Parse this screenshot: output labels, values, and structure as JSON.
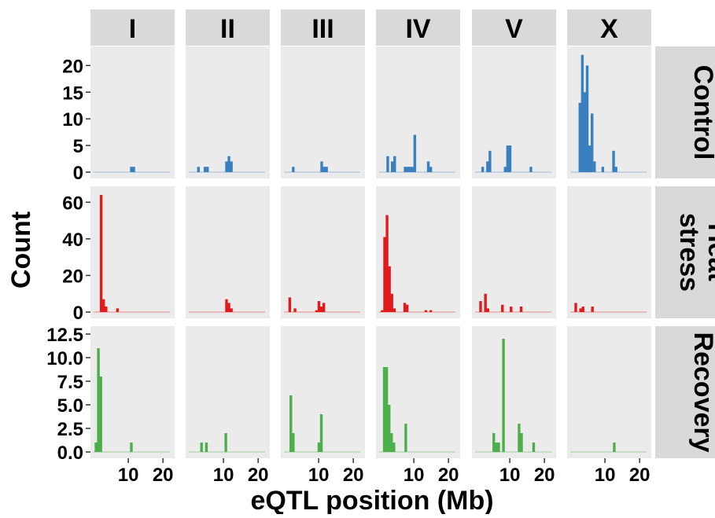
{
  "chart_data": {
    "type": "bar",
    "xlabel": "eQTL position (Mb)",
    "ylabel": "Count",
    "columns": [
      "I",
      "II",
      "III",
      "IV",
      "V",
      "X"
    ],
    "colors": {
      "Control": "#3a80bf",
      "Heat stress": "#e31a1c",
      "Recovery": "#4daf4a",
      "panel_bg": "#ebebeb",
      "strip_bg": "#d9d9d9"
    },
    "bin_width_mb": 0.7,
    "x_ticks": [
      "10",
      "20"
    ],
    "x_tick_values": [
      10,
      20
    ],
    "xlim": [
      0,
      22
    ],
    "rows": [
      {
        "label_lines": [
          "Control"
        ],
        "y_ticks": [
          "0",
          "5",
          "10",
          "15",
          "20"
        ],
        "y_tick_values": [
          0,
          5,
          10,
          15,
          20
        ],
        "ylim": [
          0,
          23
        ],
        "bars": [
          [
            [
              10.5,
              1
            ],
            [
              11.2,
              1
            ]
          ],
          [
            [
              2.4,
              1
            ],
            [
              4.3,
              1
            ],
            [
              5.0,
              1
            ],
            [
              10.5,
              2
            ],
            [
              11.2,
              3
            ],
            [
              11.9,
              2
            ]
          ],
          [
            [
              2.3,
              1
            ],
            [
              10.5,
              2
            ],
            [
              11.2,
              1
            ],
            [
              11.9,
              1
            ]
          ],
          [
            [
              2.1,
              3
            ],
            [
              3.4,
              2
            ],
            [
              4.1,
              3
            ],
            [
              7.1,
              1
            ],
            [
              7.8,
              1
            ],
            [
              8.5,
              1
            ],
            [
              9.2,
              1
            ],
            [
              9.9,
              7
            ],
            [
              13.8,
              2
            ],
            [
              14.5,
              1
            ]
          ],
          [
            [
              1.8,
              1
            ],
            [
              3.2,
              2
            ],
            [
              3.9,
              4
            ],
            [
              8.3,
              1
            ],
            [
              9.0,
              5
            ],
            [
              9.7,
              5
            ],
            [
              15.7,
              1
            ]
          ],
          [
            [
              2.4,
              13
            ],
            [
              3.1,
              22
            ],
            [
              3.8,
              15
            ],
            [
              4.5,
              20
            ],
            [
              5.2,
              5
            ],
            [
              5.9,
              11
            ],
            [
              6.6,
              2
            ],
            [
              9.0,
              1
            ],
            [
              12.1,
              4
            ],
            [
              12.8,
              1
            ]
          ]
        ]
      },
      {
        "label_lines": [
          "Heat",
          "stress"
        ],
        "y_ticks": [
          "0",
          "20",
          "40",
          "60"
        ],
        "y_tick_values": [
          0,
          20,
          40,
          60
        ],
        "ylim": [
          0,
          67
        ],
        "bars": [
          [
            [
              1.8,
              64
            ],
            [
              2.5,
              7
            ],
            [
              3.2,
              3
            ],
            [
              6.5,
              2
            ]
          ],
          [
            [
              10.5,
              7
            ],
            [
              11.2,
              5
            ],
            [
              11.9,
              2
            ]
          ],
          [
            [
              1.3,
              8
            ],
            [
              2.8,
              2
            ],
            [
              9.0,
              1
            ],
            [
              9.7,
              6
            ],
            [
              10.4,
              3
            ],
            [
              11.1,
              5
            ]
          ],
          [
            [
              0.5,
              1
            ],
            [
              1.2,
              41
            ],
            [
              1.9,
              53
            ],
            [
              2.6,
              25
            ],
            [
              3.3,
              10
            ],
            [
              4.0,
              2
            ],
            [
              7.0,
              5
            ],
            [
              7.7,
              4
            ],
            [
              13.1,
              1
            ],
            [
              14.5,
              1
            ]
          ],
          [
            [
              1.2,
              6
            ],
            [
              2.6,
              10
            ],
            [
              3.3,
              2
            ],
            [
              7.5,
              4
            ],
            [
              10.0,
              3
            ],
            [
              12.9,
              3
            ]
          ],
          [
            [
              1.2,
              5
            ],
            [
              2.6,
              2
            ],
            [
              3.3,
              3
            ],
            [
              6.0,
              3
            ]
          ]
        ]
      },
      {
        "label_lines": [
          "Recovery"
        ],
        "y_ticks": [
          "0.0",
          "2.5",
          "5.0",
          "7.5",
          "10.0",
          "12.5"
        ],
        "y_tick_values": [
          0,
          2.5,
          5,
          7.5,
          10,
          12.5
        ],
        "ylim": [
          0,
          13
        ],
        "bars": [
          [
            [
              0.3,
              1
            ],
            [
              1.0,
              11
            ],
            [
              1.7,
              8
            ],
            [
              10.5,
              1
            ]
          ],
          [
            [
              3.3,
              1
            ],
            [
              4.7,
              1
            ],
            [
              10.3,
              2
            ]
          ],
          [
            [
              1.6,
              6
            ],
            [
              2.3,
              2
            ],
            [
              9.7,
              1
            ],
            [
              10.4,
              4
            ]
          ],
          [
            [
              1.1,
              9
            ],
            [
              1.8,
              9
            ],
            [
              2.5,
              5
            ],
            [
              3.2,
              2
            ],
            [
              3.9,
              1
            ],
            [
              7.3,
              3
            ]
          ],
          [
            [
              5.0,
              2
            ],
            [
              5.7,
              1
            ],
            [
              6.4,
              1
            ],
            [
              7.8,
              12
            ],
            [
              12.3,
              3
            ],
            [
              13.0,
              2
            ],
            [
              16.5,
              1
            ]
          ],
          [
            [
              12.3,
              1
            ]
          ]
        ]
      }
    ]
  }
}
